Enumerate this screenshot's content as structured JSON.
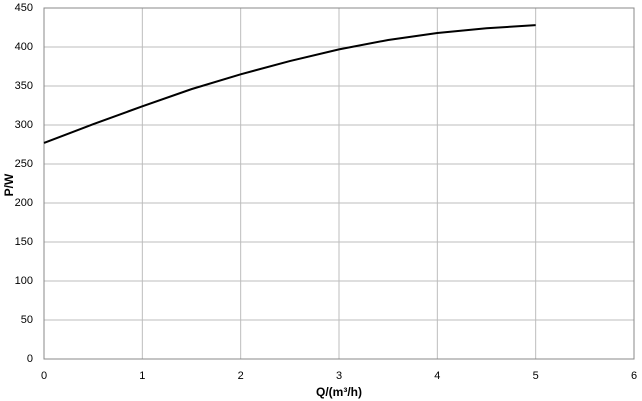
{
  "chart_data": {
    "type": "line",
    "x_label": "Q/(m³/h)",
    "y_label": "P/W",
    "x": [
      0,
      0.5,
      1,
      1.5,
      2,
      2.5,
      3,
      3.5,
      4,
      4.5,
      5
    ],
    "series": [
      {
        "name": "P",
        "color": "#000000",
        "values": [
          277,
          301,
          324,
          346,
          365,
          382,
          397,
          409,
          418,
          424,
          428
        ]
      }
    ],
    "xlim": [
      0,
      6
    ],
    "xticks": [
      0,
      1,
      2,
      3,
      4,
      5,
      6
    ],
    "ylim": [
      0,
      450
    ],
    "yticks": [
      0,
      50,
      100,
      150,
      200,
      250,
      300,
      350,
      400,
      450
    ],
    "grid": true
  }
}
